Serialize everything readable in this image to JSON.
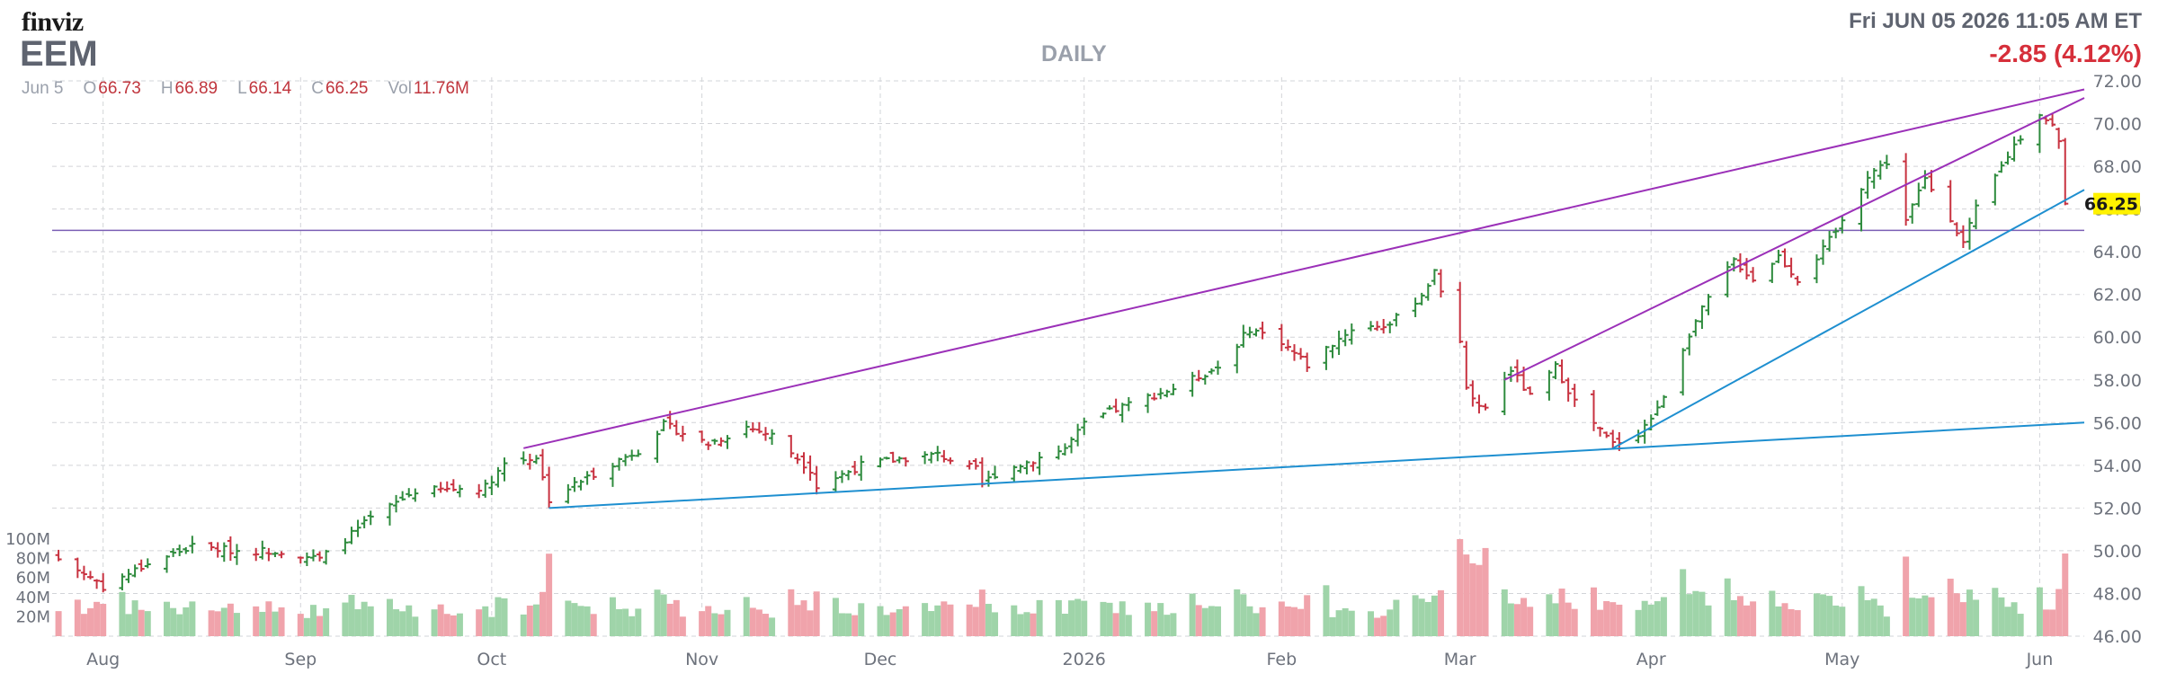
{
  "header": {
    "logo": "finviz",
    "ticker": "EEM",
    "datetime": "Fri JUN 05 2026 11:05 AM ET",
    "change": "-2.85 (4.12%)",
    "period": "DAILY"
  },
  "ohlc": {
    "date": "Jun 5",
    "open_key": "O",
    "open": "66.73",
    "high_key": "H",
    "high": "66.89",
    "low_key": "L",
    "low": "66.14",
    "close_key": "C",
    "close": "66.25",
    "vol_key": "Vol",
    "vol": "11.76M"
  },
  "colors": {
    "up": "#2e8b3d",
    "down": "#c83240",
    "vol_up": "#9fd4a9",
    "vol_down": "#f0a3ab",
    "trend_purple": "#9b30b8",
    "trend_blue": "#1e8fd0",
    "hline": "#7b5fb5",
    "last_bg": "#fff200"
  },
  "chart_data": {
    "type": "ohlc",
    "y_ticks": [
      "46.00",
      "48.00",
      "50.00",
      "52.00",
      "54.00",
      "56.00",
      "58.00",
      "60.00",
      "62.00",
      "64.00",
      "66.00",
      "68.00",
      "70.00",
      "72.00"
    ],
    "vol_ticks": [
      "20M",
      "40M",
      "60M",
      "80M",
      "100M"
    ],
    "x_labels": [
      "Aug",
      "Sep",
      "Oct",
      "Nov",
      "Dec",
      "2026",
      "Feb",
      "Mar",
      "Apr",
      "May",
      "Jun"
    ],
    "last_price": "66.25",
    "horizontal_line": 65.0,
    "anchors": [
      [
        "2025-07-25",
        49.6
      ],
      [
        "2025-07-31",
        48.6
      ],
      [
        "2025-08-01",
        48.3
      ],
      [
        "2025-08-08",
        49.4
      ],
      [
        "2025-08-15",
        50.2
      ],
      [
        "2025-08-22",
        50.0
      ],
      [
        "2025-08-29",
        50.0
      ],
      [
        "2025-09-04",
        49.6
      ],
      [
        "2025-09-12",
        51.5
      ],
      [
        "2025-09-19",
        52.8
      ],
      [
        "2025-09-26",
        52.9
      ],
      [
        "2025-09-30",
        53.0
      ],
      [
        "2025-10-03",
        54.1
      ],
      [
        "2025-10-08",
        54.4
      ],
      [
        "2025-10-10",
        52.4
      ],
      [
        "2025-10-14",
        53.1
      ],
      [
        "2025-10-20",
        54.1
      ],
      [
        "2025-10-24",
        54.7
      ],
      [
        "2025-10-28",
        55.9
      ],
      [
        "2025-11-04",
        55.0
      ],
      [
        "2025-11-10",
        55.8
      ],
      [
        "2025-11-14",
        55.4
      ],
      [
        "2025-11-20",
        53.8
      ],
      [
        "2025-11-21",
        53.0
      ],
      [
        "2025-11-28",
        54.0
      ],
      [
        "2025-12-04",
        54.3
      ],
      [
        "2025-12-10",
        54.5
      ],
      [
        "2025-12-16",
        53.8
      ],
      [
        "2025-12-17",
        53.1
      ],
      [
        "2025-12-19",
        53.6
      ],
      [
        "2025-12-30",
        54.8
      ],
      [
        "2026-01-02",
        55.9
      ],
      [
        "2026-01-06",
        56.5
      ],
      [
        "2026-01-12",
        57.2
      ],
      [
        "2026-01-16",
        57.6
      ],
      [
        "2026-01-23",
        58.6
      ],
      [
        "2026-01-28",
        60.4
      ],
      [
        "2026-02-02",
        59.8
      ],
      [
        "2026-02-06",
        58.7
      ],
      [
        "2026-02-10",
        59.7
      ],
      [
        "2026-02-13",
        60.4
      ],
      [
        "2026-02-19",
        60.6
      ],
      [
        "2026-02-24",
        62.0
      ],
      [
        "2026-02-26",
        63.0
      ],
      [
        "2026-03-02",
        59.9
      ],
      [
        "2026-03-03",
        57.6
      ],
      [
        "2026-03-06",
        56.6
      ],
      [
        "2026-03-10",
        58.5
      ],
      [
        "2026-03-13",
        57.2
      ],
      [
        "2026-03-17",
        58.6
      ],
      [
        "2026-03-20",
        57.0
      ],
      [
        "2026-03-24",
        55.6
      ],
      [
        "2026-03-26",
        55.0
      ],
      [
        "2026-03-30",
        55.5
      ],
      [
        "2026-04-02",
        56.6
      ],
      [
        "2026-04-07",
        60.2
      ],
      [
        "2026-04-10",
        61.8
      ],
      [
        "2026-04-14",
        63.6
      ],
      [
        "2026-04-17",
        62.7
      ],
      [
        "2026-04-21",
        63.8
      ],
      [
        "2026-04-24",
        62.7
      ],
      [
        "2026-04-28",
        64.1
      ],
      [
        "2026-05-01",
        65.4
      ],
      [
        "2026-05-05",
        67.6
      ],
      [
        "2026-05-08",
        68.2
      ],
      [
        "2026-05-11",
        65.5
      ],
      [
        "2026-05-14",
        67.4
      ],
      [
        "2026-05-18",
        65.6
      ],
      [
        "2026-05-20",
        64.4
      ],
      [
        "2026-05-22",
        66.0
      ],
      [
        "2026-05-26",
        68.0
      ],
      [
        "2026-05-28",
        69.0
      ],
      [
        "2026-06-01",
        70.5
      ],
      [
        "2026-06-03",
        69.9
      ],
      [
        "2026-06-04",
        69.1
      ],
      [
        "2026-06-05",
        66.25
      ]
    ],
    "trendlines": [
      {
        "color": "purple",
        "from": [
          "2025-10-06",
          54.8
        ],
        "to": [
          "2026-06-08",
          71.6
        ]
      },
      {
        "color": "purple",
        "from": [
          "2026-03-09",
          58.0
        ],
        "to": [
          "2026-06-08",
          71.2
        ]
      },
      {
        "color": "blue",
        "from": [
          "2025-10-10",
          52.0
        ],
        "to": [
          "2026-06-08",
          56.0
        ]
      },
      {
        "color": "blue",
        "from": [
          "2026-03-26",
          54.8
        ],
        "to": [
          "2026-06-08",
          66.9
        ]
      }
    ]
  }
}
